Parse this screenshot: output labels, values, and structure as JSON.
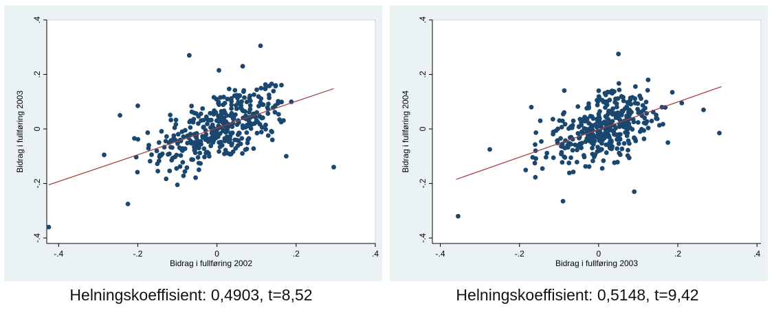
{
  "chart_data": [
    {
      "type": "scatter",
      "xlabel": "Bidrag i fullføring 2002",
      "ylabel": "Bidrag i fullføring 2003",
      "xlim": [
        -0.43,
        0.4
      ],
      "ylim": [
        -0.42,
        0.4
      ],
      "x_ticks": [
        -0.4,
        -0.2,
        0,
        0.2,
        0.4
      ],
      "x_tick_labels": [
        "-.4",
        "-.2",
        "0",
        ".2",
        ".4"
      ],
      "y_ticks": [
        -0.4,
        -0.2,
        0,
        0.2,
        0.4
      ],
      "y_tick_labels": [
        "-.4",
        "-.2",
        "0",
        ".2",
        ".4"
      ],
      "grid": false,
      "marker_color": "#1a476f",
      "fit_line_color": "#a04040",
      "fit_line": {
        "x": [
          -0.425,
          0.295
        ],
        "y": [
          -0.205,
          0.148
        ]
      },
      "caption": "Helningskoeffisient: 0,4903, t=8,52"
    },
    {
      "type": "scatter",
      "xlabel": "Bidrag i fullføring 2003",
      "ylabel": "Bidrag i fullføring 2004",
      "xlim": [
        -0.42,
        0.41
      ],
      "ylim": [
        -0.42,
        0.4
      ],
      "x_ticks": [
        -0.4,
        -0.2,
        0,
        0.2,
        0.4
      ],
      "x_tick_labels": [
        "-.4",
        "-.2",
        "0",
        ".2",
        ".4"
      ],
      "y_ticks": [
        -0.4,
        -0.2,
        0,
        0.2,
        0.4
      ],
      "y_tick_labels": [
        "-.4",
        "-.2",
        "0",
        ".2",
        ".4"
      ],
      "grid": false,
      "marker_color": "#1a476f",
      "fit_line_color": "#a04040",
      "fit_line": {
        "x": [
          -0.36,
          0.31
        ],
        "y": [
          -0.185,
          0.155
        ]
      },
      "caption": "Helningskoeffisient: 0,5148, t=9,42"
    }
  ]
}
